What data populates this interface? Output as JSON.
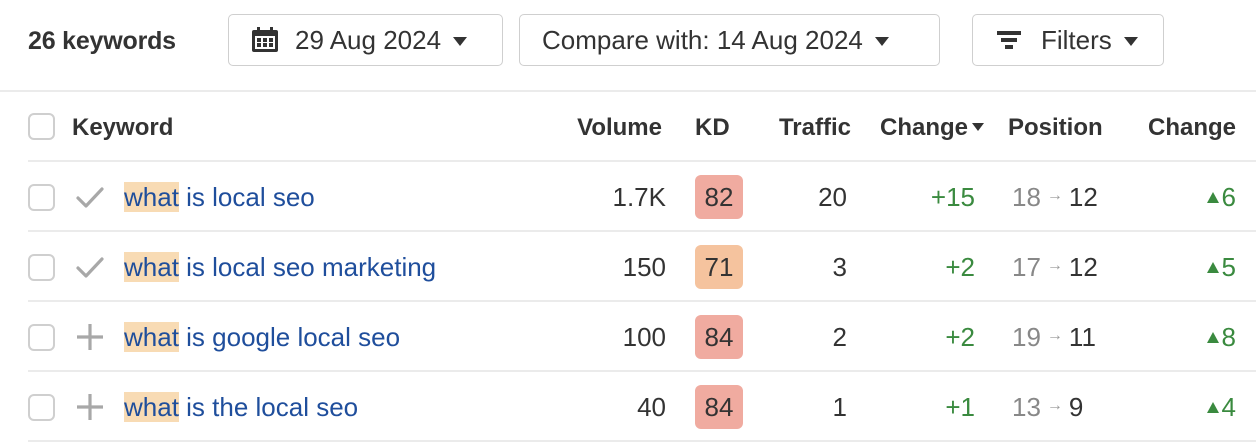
{
  "toolbar": {
    "keyword_count": "26 keywords",
    "date_label": "29 Aug 2024",
    "compare_label": "Compare with: 14 Aug 2024",
    "filters_label": "Filters"
  },
  "table": {
    "columns": {
      "keyword": "Keyword",
      "volume": "Volume",
      "kd": "KD",
      "traffic": "Traffic",
      "traffic_change": "Change",
      "position": "Position",
      "position_change": "Change"
    },
    "rows": [
      {
        "status_icon": "check",
        "highlight": "what",
        "rest": " is local seo",
        "volume": "1.7K",
        "kd": "82",
        "kd_color": "#f0aba0",
        "traffic": "20",
        "traffic_change": "+15",
        "pos_old": "18",
        "pos_new": "12",
        "pos_change": "6"
      },
      {
        "status_icon": "check",
        "highlight": "what",
        "rest": " is local seo marketing",
        "volume": "150",
        "kd": "71",
        "kd_color": "#f5c39e",
        "traffic": "3",
        "traffic_change": "+2",
        "pos_old": "17",
        "pos_new": "12",
        "pos_change": "5"
      },
      {
        "status_icon": "plus",
        "highlight": "what",
        "rest": " is google local seo",
        "volume": "100",
        "kd": "84",
        "kd_color": "#f0aba0",
        "traffic": "2",
        "traffic_change": "+2",
        "pos_old": "19",
        "pos_new": "11",
        "pos_change": "8"
      },
      {
        "status_icon": "plus",
        "highlight": "what",
        "rest": " is the local seo",
        "volume": "40",
        "kd": "84",
        "kd_color": "#f0aba0",
        "traffic": "1",
        "traffic_change": "+1",
        "pos_old": "13",
        "pos_new": "9",
        "pos_change": "4"
      }
    ],
    "arrow_glyph": "→"
  },
  "colors": {
    "link": "#1f4e9c",
    "highlight": "#f8dbb4",
    "positive": "#3a8a3f",
    "kd_hard": "#f0aba0",
    "kd_medium": "#f5c39e"
  }
}
